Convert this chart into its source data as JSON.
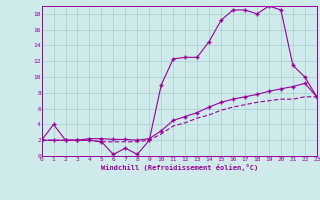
{
  "xlabel": "Windchill (Refroidissement éolien,°C)",
  "bg_color": "#ceeaea",
  "grid_color": "#aacece",
  "line_color": "#990099",
  "line1_x": [
    0,
    1,
    2,
    3,
    4,
    5,
    6,
    7,
    8,
    9,
    10,
    11,
    12,
    13,
    14,
    15,
    16,
    17,
    18,
    19,
    20,
    21,
    22,
    23
  ],
  "line1_y": [
    2,
    4,
    2,
    2,
    2,
    1.8,
    0.2,
    1.0,
    0.2,
    2,
    9,
    12.3,
    12.5,
    12.5,
    14.5,
    17.2,
    18.5,
    18.5,
    18,
    19,
    18.5,
    11.5,
    10,
    7.5
  ],
  "line2_x": [
    0,
    1,
    2,
    3,
    4,
    5,
    6,
    7,
    8,
    9,
    10,
    11,
    12,
    13,
    14,
    15,
    16,
    17,
    18,
    19,
    20,
    21,
    22,
    23
  ],
  "line2_y": [
    2,
    2.0,
    2.0,
    2.0,
    2.2,
    2.2,
    2.1,
    2.1,
    2.0,
    2.2,
    3.2,
    4.5,
    5.0,
    5.5,
    6.2,
    6.8,
    7.2,
    7.5,
    7.8,
    8.2,
    8.5,
    8.8,
    9.2,
    7.5
  ],
  "line3_x": [
    0,
    1,
    2,
    3,
    4,
    5,
    6,
    7,
    8,
    9,
    10,
    11,
    12,
    13,
    14,
    15,
    16,
    17,
    18,
    19,
    20,
    21,
    22,
    23
  ],
  "line3_y": [
    2,
    2.0,
    2.0,
    2.0,
    2.0,
    1.8,
    1.8,
    1.8,
    1.8,
    2.0,
    2.8,
    3.8,
    4.2,
    4.8,
    5.2,
    5.8,
    6.2,
    6.5,
    6.8,
    7.0,
    7.2,
    7.2,
    7.5,
    7.5
  ],
  "xlim": [
    0,
    23
  ],
  "ylim": [
    0,
    19
  ],
  "xticks": [
    0,
    1,
    2,
    3,
    4,
    5,
    6,
    7,
    8,
    9,
    10,
    11,
    12,
    13,
    14,
    15,
    16,
    17,
    18,
    19,
    20,
    21,
    22,
    23
  ],
  "yticks": [
    0,
    2,
    4,
    6,
    8,
    10,
    12,
    14,
    16,
    18
  ]
}
